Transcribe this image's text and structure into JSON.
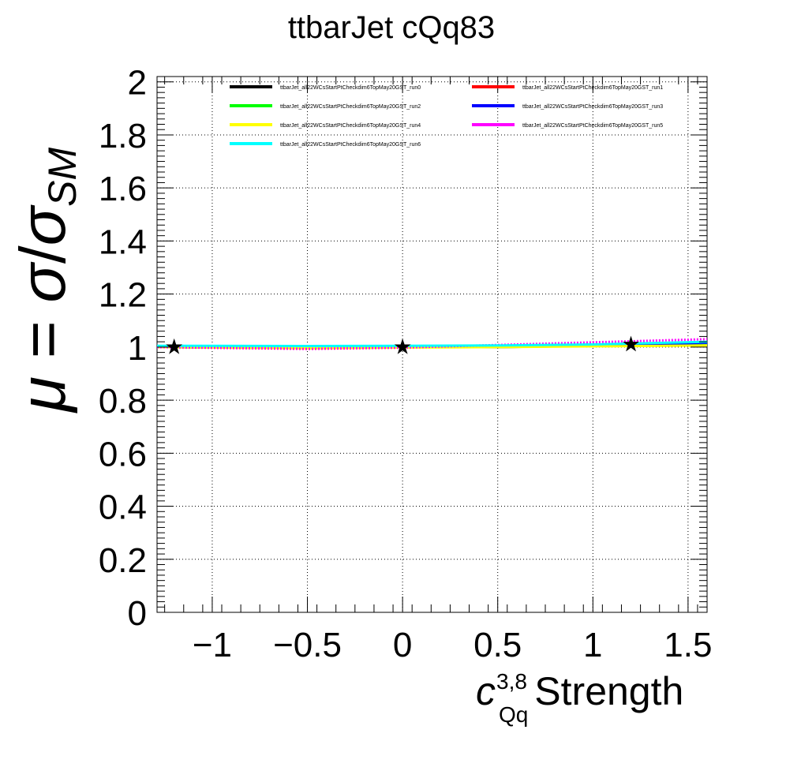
{
  "chart_data": {
    "type": "line",
    "title": "ttbarJet cQq83",
    "xlabel": {
      "symbol": "c",
      "superscript": "3,8",
      "subscript": "Qq",
      "text": "Strength"
    },
    "ylabel": {
      "mu": "μ",
      "eq": " = ",
      "sigma": "σ",
      "slash": "/",
      "sigma_sm": "σ",
      "sm": "SM"
    },
    "xlim": [
      -1.29,
      1.6
    ],
    "ylim": [
      0,
      2.02
    ],
    "x_ticks": [
      -1,
      -0.5,
      0,
      0.5,
      1,
      1.5
    ],
    "x_tick_labels": [
      "−1",
      "−0.5",
      "0",
      "0.5",
      "1",
      "1.5"
    ],
    "y_ticks": [
      0,
      0.2,
      0.4,
      0.6,
      0.8,
      1,
      1.2,
      1.4,
      1.6,
      1.8,
      2
    ],
    "y_tick_labels": [
      "0",
      "0.2",
      "0.4",
      "0.6",
      "0.8",
      "1",
      "1.2",
      "1.4",
      "1.6",
      "1.8",
      "2"
    ],
    "grid": true,
    "legend_position": "top",
    "series": [
      {
        "name": "ttbarJet_all22WCsStartPtCheckdim6TopMay20GST_run0",
        "color": "#000000",
        "x": [
          -1.29,
          -0.5,
          0,
          0.5,
          1.0,
          1.6
        ],
        "y": [
          1.0,
          1.0,
          1.0,
          1.0,
          1.005,
          1.012
        ]
      },
      {
        "name": "ttbarJet_all22WCsStartPtCheckdim6TopMay20GST_run1",
        "color": "#ff0000",
        "x": [
          -1.29,
          -0.5,
          0,
          0.5,
          1.0,
          1.6
        ],
        "y": [
          1.0,
          0.998,
          1.0,
          1.003,
          1.008,
          1.015
        ]
      },
      {
        "name": "ttbarJet_all22WCsStartPtCheckdim6TopMay20GST_run2",
        "color": "#00ff00",
        "x": [
          -1.29,
          -0.5,
          0,
          0.5,
          1.0,
          1.6
        ],
        "y": [
          1.0,
          0.997,
          1.0,
          1.002,
          1.006,
          1.01
        ]
      },
      {
        "name": "ttbarJet_all22WCsStartPtCheckdim6TopMay20GST_run3",
        "color": "#0000ff",
        "x": [
          -1.29,
          -0.5,
          0,
          0.5,
          1.0,
          1.6
        ],
        "y": [
          1.0,
          0.996,
          0.999,
          1.004,
          1.009,
          1.016
        ]
      },
      {
        "name": "ttbarJet_all22WCsStartPtCheckdim6TopMay20GST_run4",
        "color": "#ffff00",
        "x": [
          -1.29,
          -0.5,
          0,
          0.5,
          1.0,
          1.6
        ],
        "y": [
          1.0,
          0.995,
          0.998,
          1.0,
          1.003,
          1.006
        ]
      },
      {
        "name": "ttbarJet_all22WCsStartPtCheckdim6TopMay20GST_run5",
        "color": "#ff00ff",
        "x": [
          -1.29,
          -0.5,
          0,
          0.5,
          1.0,
          1.6
        ],
        "y": [
          1.0,
          0.993,
          0.998,
          1.008,
          1.018,
          1.03
        ]
      },
      {
        "name": "ttbarJet_all22WCsStartPtCheckdim6TopMay20GST_run6",
        "color": "#00ffff",
        "x": [
          -1.29,
          -0.5,
          0,
          0.5,
          1.0,
          1.6
        ],
        "y": [
          1.005,
          1.004,
          1.005,
          1.006,
          1.01,
          1.02
        ]
      }
    ],
    "markers": {
      "shape": "star",
      "color": "#000000",
      "x": [
        -1.2,
        0,
        1.2
      ],
      "y": [
        1.0,
        1.0,
        1.01
      ]
    }
  }
}
